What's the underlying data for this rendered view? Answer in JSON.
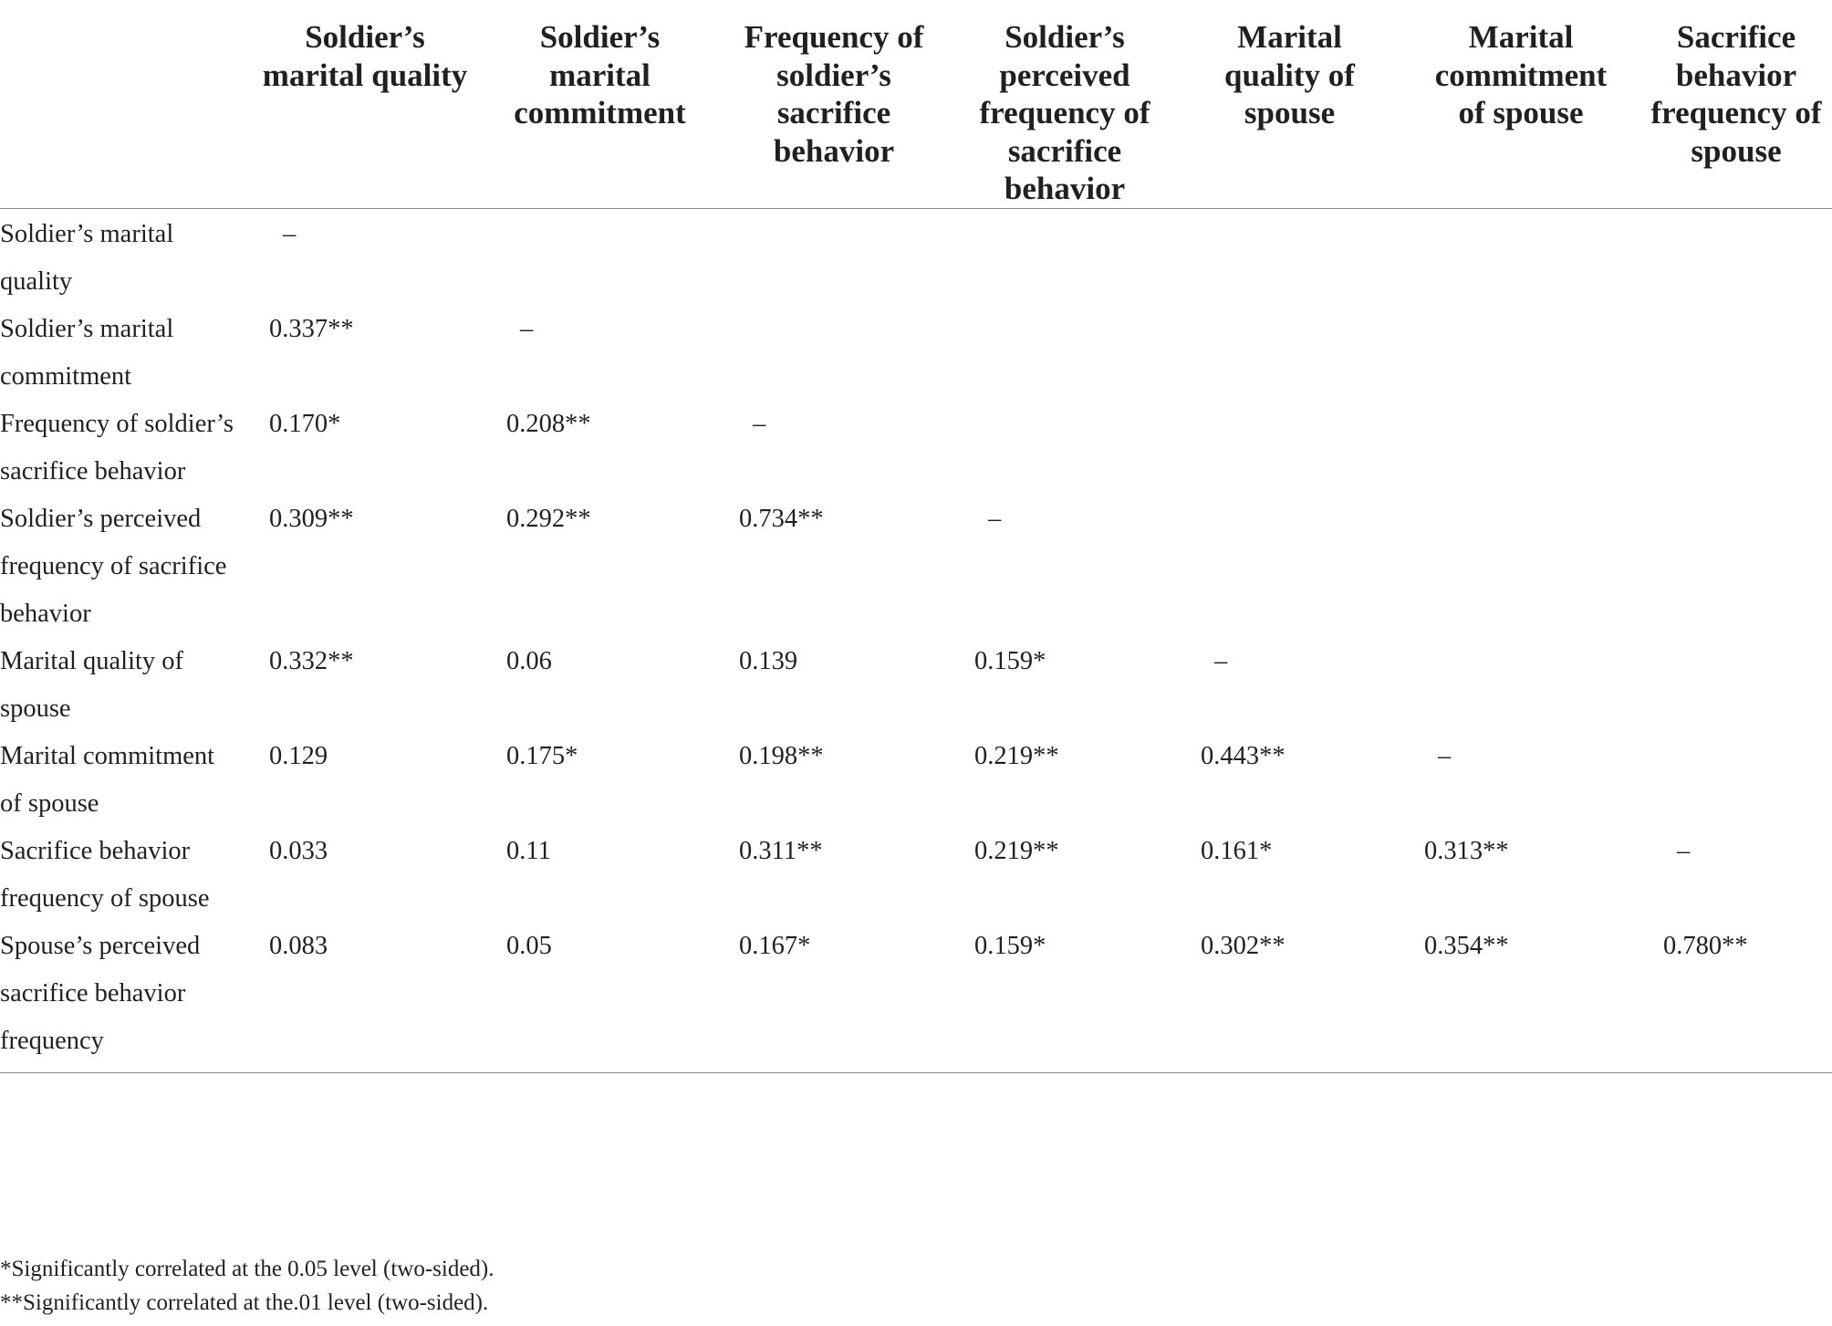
{
  "table": {
    "columns": [
      "",
      "Soldier’s marital quality",
      "Soldier’s marital commitment",
      "Frequency of soldier’s sacrifice behavior",
      "Soldier’s perceived frequency of sacrifice behavior",
      "Marital quality of spouse",
      "Marital commitment of spouse",
      "Sacrifice behavior frequency of spouse"
    ],
    "rows": [
      {
        "label": "Soldier’s marital quality",
        "values": [
          "–",
          "",
          "",
          "",
          "",
          "",
          ""
        ]
      },
      {
        "label": "Soldier’s marital commitment",
        "values": [
          "0.337**",
          "–",
          "",
          "",
          "",
          "",
          ""
        ]
      },
      {
        "label": "Frequency of soldier’s sacrifice behavior",
        "values": [
          "0.170*",
          "0.208**",
          "–",
          "",
          "",
          "",
          ""
        ]
      },
      {
        "label": "Soldier’s perceived frequency of sacrifice behavior",
        "values": [
          "0.309**",
          "0.292**",
          "0.734**",
          "–",
          "",
          "",
          ""
        ]
      },
      {
        "label": "Marital quality of spouse",
        "values": [
          "0.332**",
          "0.06",
          "0.139",
          "0.159*",
          "–",
          "",
          ""
        ]
      },
      {
        "label": "Marital commitment of spouse",
        "values": [
          "0.129",
          "0.175*",
          "0.198**",
          "0.219**",
          "0.443**",
          "–",
          ""
        ]
      },
      {
        "label": "Sacrifice behavior frequency of spouse",
        "values": [
          "0.033",
          "0.11",
          "0.311**",
          "0.219**",
          "0.161*",
          "0.313**",
          "–"
        ]
      },
      {
        "label": "Spouse’s perceived sacrifice behavior frequency",
        "values": [
          "0.083",
          "0.05",
          "0.167*",
          "0.159*",
          "0.302**",
          "0.354**",
          "0.780**"
        ]
      }
    ]
  },
  "footnotes": [
    "*Significantly correlated at the 0.05 level (two-sided).",
    "**Significantly correlated at the.01 level (two-sided)."
  ]
}
